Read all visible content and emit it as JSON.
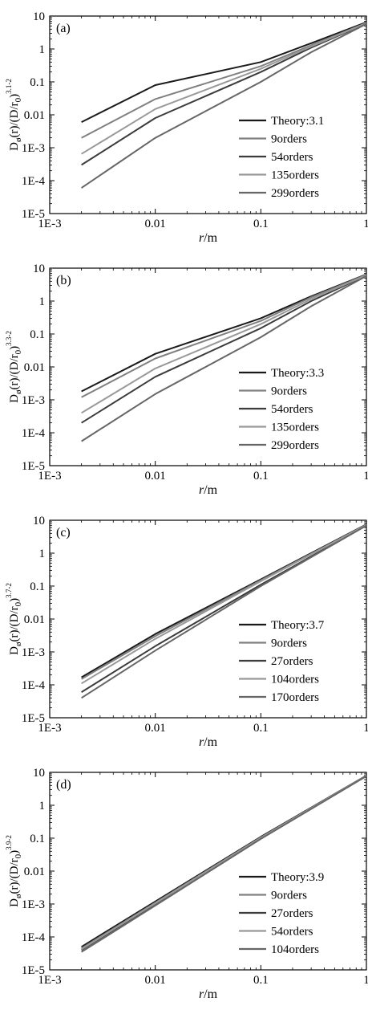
{
  "chart_data": [
    {
      "type": "line",
      "panel_label": "(a)",
      "ylabel": {
        "base": "D",
        "sub": "ø",
        "mid": "(r)/(D/r",
        "sub2": "0",
        "close": ")",
        "sup": "3.1-2"
      },
      "xlabel": {
        "var": "r",
        "unit": "/m"
      },
      "xscale": "log",
      "yscale": "log",
      "xlim": [
        0.001,
        1
      ],
      "ylim": [
        1e-05,
        10
      ],
      "xticks": [
        "1E-3",
        "0.01",
        "0.1",
        "1"
      ],
      "yticks": [
        "1E-5",
        "1E-4",
        "1E-3",
        "0.01",
        "0.1",
        "1",
        "10"
      ],
      "legend_position": "lower-right",
      "series": [
        {
          "name": "Theory:3.1",
          "color": "#1a1a1a",
          "x": [
            0.002,
            0.01,
            0.1,
            0.3,
            1
          ],
          "y": [
            0.006,
            0.08,
            0.4,
            1.5,
            6.5
          ]
        },
        {
          "name": "9orders",
          "color": "#808080",
          "x": [
            0.002,
            0.01,
            0.1,
            0.3,
            1
          ],
          "y": [
            0.002,
            0.03,
            0.3,
            1.3,
            6.2
          ]
        },
        {
          "name": "54orders",
          "color": "#3c3c3c",
          "x": [
            0.002,
            0.01,
            0.1,
            0.3,
            1
          ],
          "y": [
            0.0003,
            0.008,
            0.2,
            1.1,
            6.0
          ]
        },
        {
          "name": "135orders",
          "color": "#999999",
          "x": [
            0.002,
            0.01,
            0.1,
            0.3,
            1
          ],
          "y": [
            0.00065,
            0.015,
            0.25,
            1.2,
            6.1
          ]
        },
        {
          "name": "299orders",
          "color": "#666666",
          "x": [
            0.002,
            0.01,
            0.1,
            0.3,
            1
          ],
          "y": [
            6e-05,
            0.002,
            0.1,
            0.8,
            5.8
          ]
        }
      ]
    },
    {
      "type": "line",
      "panel_label": "(b)",
      "ylabel": {
        "base": "D",
        "sub": "ø",
        "mid": "(r)/(D/r",
        "sub2": "0",
        "close": ")",
        "sup": "3.3-2"
      },
      "xlabel": {
        "var": "r",
        "unit": "/m"
      },
      "xscale": "log",
      "yscale": "log",
      "xlim": [
        0.001,
        1
      ],
      "ylim": [
        1e-05,
        10
      ],
      "xticks": [
        "1E-3",
        "0.01",
        "0.1",
        "1"
      ],
      "yticks": [
        "1E-5",
        "1E-4",
        "1E-3",
        "0.01",
        "0.1",
        "1",
        "10"
      ],
      "legend_position": "lower-right",
      "series": [
        {
          "name": "Theory:3.3",
          "color": "#1a1a1a",
          "x": [
            0.002,
            0.01,
            0.1,
            0.3,
            1
          ],
          "y": [
            0.0018,
            0.025,
            0.3,
            1.4,
            6.5
          ]
        },
        {
          "name": "9orders",
          "color": "#808080",
          "x": [
            0.002,
            0.01,
            0.1,
            0.3,
            1
          ],
          "y": [
            0.0012,
            0.018,
            0.25,
            1.3,
            6.3
          ]
        },
        {
          "name": "54orders",
          "color": "#3c3c3c",
          "x": [
            0.002,
            0.01,
            0.1,
            0.3,
            1
          ],
          "y": [
            0.0002,
            0.005,
            0.15,
            1.0,
            6.0
          ]
        },
        {
          "name": "135orders",
          "color": "#999999",
          "x": [
            0.002,
            0.01,
            0.1,
            0.3,
            1
          ],
          "y": [
            0.0004,
            0.009,
            0.2,
            1.15,
            6.1
          ]
        },
        {
          "name": "299orders",
          "color": "#666666",
          "x": [
            0.002,
            0.01,
            0.1,
            0.3,
            1
          ],
          "y": [
            5.5e-05,
            0.0015,
            0.08,
            0.7,
            5.8
          ]
        }
      ]
    },
    {
      "type": "line",
      "panel_label": "(c)",
      "ylabel": {
        "base": "D",
        "sub": "ø",
        "mid": "(r)/(D/r",
        "sub2": "0",
        "close": ")",
        "sup": "3.7-2"
      },
      "xlabel": {
        "var": "r",
        "unit": "/m"
      },
      "xscale": "log",
      "yscale": "log",
      "xlim": [
        0.001,
        1
      ],
      "ylim": [
        1e-05,
        10
      ],
      "xticks": [
        "1E-3",
        "0.01",
        "0.1",
        "1"
      ],
      "yticks": [
        "1E-5",
        "1E-4",
        "1E-3",
        "0.01",
        "0.1",
        "1",
        "10"
      ],
      "legend_position": "lower-right",
      "series": [
        {
          "name": "Theory:3.7",
          "color": "#1a1a1a",
          "x": [
            0.002,
            0.01,
            0.1,
            1
          ],
          "y": [
            0.00017,
            0.0035,
            0.16,
            7.5
          ]
        },
        {
          "name": "9orders",
          "color": "#808080",
          "x": [
            0.002,
            0.01,
            0.1,
            1
          ],
          "y": [
            0.00015,
            0.003,
            0.15,
            7.3
          ]
        },
        {
          "name": "27orders",
          "color": "#3c3c3c",
          "x": [
            0.002,
            0.01,
            0.1,
            1
          ],
          "y": [
            6e-05,
            0.0015,
            0.11,
            7.0
          ]
        },
        {
          "name": "104orders",
          "color": "#999999",
          "x": [
            0.002,
            0.01,
            0.1,
            1
          ],
          "y": [
            0.00011,
            0.0025,
            0.14,
            7.2
          ]
        },
        {
          "name": "170orders",
          "color": "#666666",
          "x": [
            0.002,
            0.01,
            0.1,
            1
          ],
          "y": [
            4e-05,
            0.0011,
            0.1,
            6.9
          ]
        }
      ]
    },
    {
      "type": "line",
      "panel_label": "(d)",
      "ylabel": {
        "base": "D",
        "sub": "ø",
        "mid": "(r)/(D/r",
        "sub2": "0",
        "close": ")",
        "sup": "3.9-2"
      },
      "xlabel": {
        "var": "r",
        "unit": "/m"
      },
      "xscale": "log",
      "yscale": "log",
      "xlim": [
        0.001,
        1
      ],
      "ylim": [
        1e-05,
        10
      ],
      "xticks": [
        "1E-3",
        "0.01",
        "0.1",
        "1"
      ],
      "yticks": [
        "1E-5",
        "1E-4",
        "1E-3",
        "0.01",
        "0.1",
        "1",
        "10"
      ],
      "legend_position": "lower-right",
      "series": [
        {
          "name": "Theory:3.9",
          "color": "#1a1a1a",
          "x": [
            0.002,
            0.01,
            0.1,
            1
          ],
          "y": [
            5e-05,
            0.0012,
            0.11,
            8.0
          ]
        },
        {
          "name": "9orders",
          "color": "#808080",
          "x": [
            0.002,
            0.01,
            0.1,
            1
          ],
          "y": [
            4.5e-05,
            0.0011,
            0.105,
            7.9
          ]
        },
        {
          "name": "27orders",
          "color": "#3c3c3c",
          "x": [
            0.002,
            0.01,
            0.1,
            1
          ],
          "y": [
            4e-05,
            0.001,
            0.1,
            7.8
          ]
        },
        {
          "name": "54orders",
          "color": "#999999",
          "x": [
            0.002,
            0.01,
            0.1,
            1
          ],
          "y": [
            4.2e-05,
            0.00105,
            0.102,
            7.85
          ]
        },
        {
          "name": "104orders",
          "color": "#666666",
          "x": [
            0.002,
            0.01,
            0.1,
            1
          ],
          "y": [
            3.5e-05,
            0.0009,
            0.095,
            7.7
          ]
        }
      ]
    }
  ]
}
